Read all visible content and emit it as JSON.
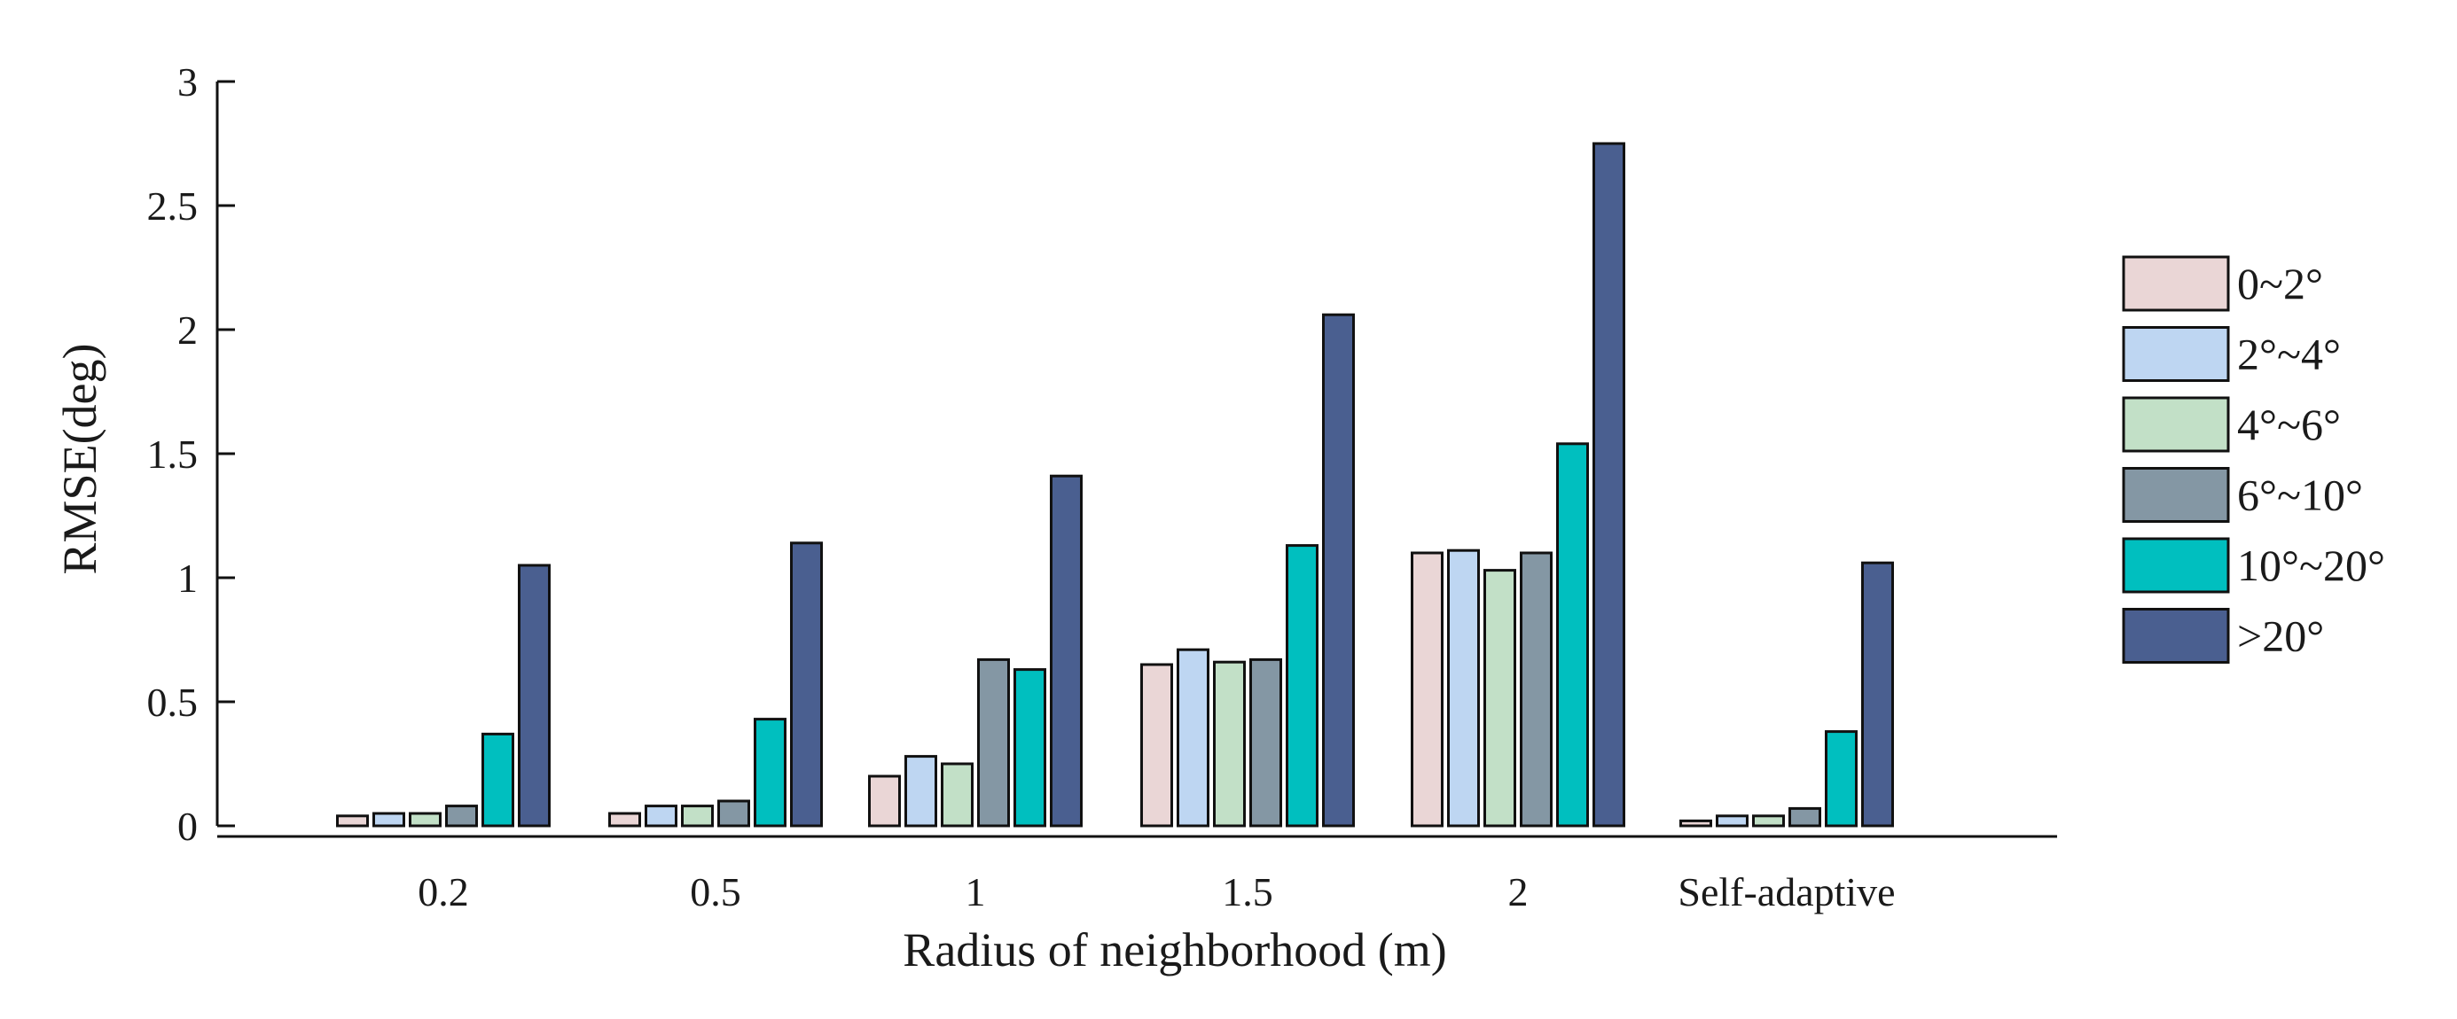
{
  "chart_data": {
    "type": "bar",
    "title": "",
    "xlabel": "Radius of neighborhood (m)",
    "ylabel": "RMSE(deg)",
    "ylim": [
      0,
      3
    ],
    "yticks": [
      0,
      0.5,
      1,
      1.5,
      2,
      2.5,
      3
    ],
    "ytick_labels": [
      "0",
      "0.5",
      "1",
      "1.5",
      "2",
      "2.5",
      "3"
    ],
    "grid": false,
    "legend_position": "right",
    "categories": [
      "0.2",
      "0.5",
      "1",
      "1.5",
      "2",
      "Self-adaptive"
    ],
    "series": [
      {
        "name": "0~2°",
        "color": "#ead6d6",
        "values": [
          0.04,
          0.05,
          0.2,
          0.65,
          1.1,
          0.02
        ]
      },
      {
        "name": "2°~4°",
        "color": "#bed6f2",
        "values": [
          0.05,
          0.08,
          0.28,
          0.71,
          1.11,
          0.04
        ]
      },
      {
        "name": "4°~6°",
        "color": "#c2e0c7",
        "values": [
          0.05,
          0.08,
          0.25,
          0.66,
          1.03,
          0.04
        ]
      },
      {
        "name": "6°~10°",
        "color": "#8497a4",
        "values": [
          0.08,
          0.1,
          0.67,
          0.67,
          1.1,
          0.07
        ]
      },
      {
        "name": "10°~20°",
        "color": "#00bfbf",
        "values": [
          0.37,
          0.43,
          0.63,
          1.13,
          1.54,
          0.38
        ]
      },
      {
        "name": ">20°",
        "color": "#4a5f90",
        "values": [
          1.05,
          1.14,
          1.41,
          2.06,
          2.75,
          1.06
        ]
      }
    ]
  }
}
